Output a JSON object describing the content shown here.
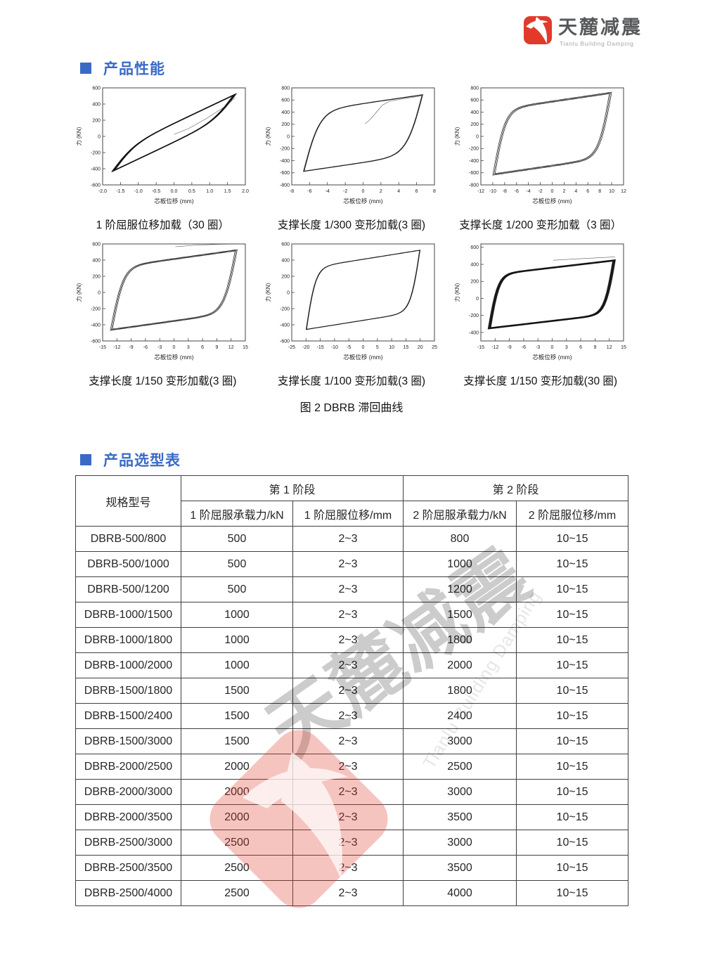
{
  "header": {
    "logo_text": "天麓减震",
    "logo_subtext": "Tianlu Building Damping"
  },
  "sections": {
    "performance_title": "产品性能",
    "selection_title": "产品选型表"
  },
  "figure_caption": "图 2 DBRB 滞回曲线",
  "chart_data": [
    {
      "type": "line",
      "caption": "1 阶屈服位移加载（30 圈）",
      "xlabel": "芯板位移 (mm)",
      "ylabel": "力 (KN)",
      "xlim": [
        -2,
        2
      ],
      "ylim": [
        -600,
        600
      ],
      "xticks": [
        "-2.0",
        "-1.5",
        "-1.0",
        "-0.5",
        "0.0",
        "0.5",
        "1.0",
        "1.5",
        "2.0"
      ],
      "yticks": [
        -600,
        -400,
        -200,
        0,
        200,
        400,
        600
      ],
      "loop": {
        "neg_tip": [
          -1.75,
          -440
        ],
        "pos_tip": [
          1.75,
          530
        ],
        "yield_force": 120,
        "k": 1.6,
        "cycles": 30,
        "spread": 0.06,
        "shape": "lens"
      },
      "initial_path": [
        [
          0,
          25
        ],
        [
          0.4,
          95
        ],
        [
          0.9,
          220
        ],
        [
          1.4,
          360
        ],
        [
          1.72,
          480
        ]
      ]
    },
    {
      "type": "line",
      "caption": "支撑长度 1/300 变形加载(3 圈)",
      "xlabel": "芯板位移 (mm)",
      "ylabel": "力 (KN)",
      "xlim": [
        -8,
        8
      ],
      "ylim": [
        -800,
        800
      ],
      "xticks": [
        "-8",
        "-6",
        "-4",
        "-2",
        "0",
        "2",
        "4",
        "6",
        "8"
      ],
      "yticks": [
        -800,
        -600,
        -400,
        -200,
        0,
        200,
        400,
        600,
        800
      ],
      "loop": {
        "neg_tip": [
          -6.7,
          -580
        ],
        "pos_tip": [
          6.7,
          690
        ],
        "yield_force": 490,
        "k": 0.55,
        "cycles": 3,
        "spread": 0.015,
        "shape": "full"
      },
      "initial_path": [
        [
          0.2,
          205
        ],
        [
          0.8,
          280
        ],
        [
          1.5,
          400
        ],
        [
          2.2,
          520
        ],
        [
          3.0,
          580
        ],
        [
          4.5,
          622
        ],
        [
          6.5,
          665
        ]
      ]
    },
    {
      "type": "line",
      "caption": "支撑长度 1/200 变形加载（3 圈）",
      "xlabel": "芯板位移 (mm)",
      "ylabel": "力 (KN)",
      "xlim": [
        -12,
        12
      ],
      "ylim": [
        -800,
        800
      ],
      "xticks": [
        "-12",
        "-10",
        "-8",
        "-6",
        "-4",
        "-2",
        "0",
        "2",
        "4",
        "6",
        "8",
        "10",
        "12"
      ],
      "yticks": [
        -800,
        -600,
        -400,
        -200,
        0,
        200,
        400,
        600,
        800
      ],
      "loop": {
        "neg_tip": [
          -10,
          -640
        ],
        "pos_tip": [
          10,
          730
        ],
        "yield_force": 540,
        "k": 0.5,
        "cycles": 3,
        "spread": 0.04,
        "shape": "full"
      },
      "initial_path": null
    },
    {
      "type": "line",
      "caption": "支撑长度 1/150 变形加载(3 圈)",
      "xlabel": "芯板位移 (mm)",
      "ylabel": "力 (KN)",
      "xlim": [
        -15,
        15
      ],
      "ylim": [
        -600,
        600
      ],
      "xticks": [
        "-15",
        "-12",
        "-9",
        "-6",
        "-3",
        "0",
        "3",
        "6",
        "9",
        "12",
        "15"
      ],
      "yticks": [
        -600,
        -400,
        -200,
        0,
        200,
        400,
        600
      ],
      "loop": {
        "neg_tip": [
          -13.4,
          -470
        ],
        "pos_tip": [
          13.3,
          530
        ],
        "yield_force": 390,
        "k": 0.38,
        "cycles": 3,
        "spread": 0.035,
        "shape": "full"
      },
      "initial_path": [
        [
          0.3,
          565
        ],
        [
          4,
          583
        ],
        [
          9,
          595
        ],
        [
          13.1,
          600
        ]
      ]
    },
    {
      "type": "line",
      "caption": "支撑长度 1/100 变形加载(3 圈)",
      "xlabel": "芯板位移 (mm)",
      "ylabel": "力 (KN)",
      "xlim": [
        -25,
        25
      ],
      "ylim": [
        -600,
        600
      ],
      "xticks": [
        "-25",
        "-20",
        "-15",
        "-10",
        "-5",
        "0",
        "5",
        "10",
        "15",
        "20",
        "25"
      ],
      "yticks": [
        -600,
        -400,
        -200,
        0,
        200,
        400,
        600
      ],
      "loop": {
        "neg_tip": [
          -20,
          -460
        ],
        "pos_tip": [
          20,
          525
        ],
        "yield_force": 380,
        "k": 0.3,
        "cycles": 3,
        "spread": 0.012,
        "shape": "full"
      },
      "initial_path": null
    },
    {
      "type": "line",
      "caption": "支撑长度 1/150 变形加载(30 圈)",
      "xlabel": "芯板位移 (mm)",
      "ylabel": "力 (KN)",
      "xlim": [
        -15,
        15
      ],
      "ylim": [
        -500,
        640
      ],
      "xticks": [
        "-15",
        "-12",
        "-9",
        "-6",
        "-3",
        "0",
        "3",
        "6",
        "9",
        "12",
        "15"
      ],
      "yticks": [
        -400,
        -200,
        0,
        200,
        400,
        600
      ],
      "loop": {
        "neg_tip": [
          -13.5,
          -360
        ],
        "pos_tip": [
          13.3,
          455
        ],
        "yield_force": 320,
        "k": 0.5,
        "cycles": 30,
        "spread": 0.045,
        "shape": "full"
      },
      "initial_path": [
        [
          0.2,
          448
        ],
        [
          5,
          464
        ],
        [
          10,
          478
        ],
        [
          13.2,
          488
        ]
      ]
    }
  ],
  "table": {
    "col_model": "规格型号",
    "stage1": "第 1 阶段",
    "stage2": "第 2 阶段",
    "subheaders": [
      "1 阶屈服承载力/kN",
      "1 阶屈服位移/mm",
      "2 阶屈服承载力/kN",
      "2 阶屈服位移/mm"
    ],
    "rows": [
      [
        "DBRB-500/800",
        "500",
        "2~3",
        "800",
        "10~15"
      ],
      [
        "DBRB-500/1000",
        "500",
        "2~3",
        "1000",
        "10~15"
      ],
      [
        "DBRB-500/1200",
        "500",
        "2~3",
        "1200",
        "10~15"
      ],
      [
        "DBRB-1000/1500",
        "1000",
        "2~3",
        "1500",
        "10~15"
      ],
      [
        "DBRB-1000/1800",
        "1000",
        "2~3",
        "1800",
        "10~15"
      ],
      [
        "DBRB-1000/2000",
        "1000",
        "2~3",
        "2000",
        "10~15"
      ],
      [
        "DBRB-1500/1800",
        "1500",
        "2~3",
        "1800",
        "10~15"
      ],
      [
        "DBRB-1500/2400",
        "1500",
        "2~3",
        "2400",
        "10~15"
      ],
      [
        "DBRB-1500/3000",
        "1500",
        "2~3",
        "3000",
        "10~15"
      ],
      [
        "DBRB-2000/2500",
        "2000",
        "2~3",
        "2500",
        "10~15"
      ],
      [
        "DBRB-2000/3000",
        "2000",
        "2~3",
        "3000",
        "10~15"
      ],
      [
        "DBRB-2000/3500",
        "2000",
        "2~3",
        "3500",
        "10~15"
      ],
      [
        "DBRB-2500/3000",
        "2500",
        "2~3",
        "3000",
        "10~15"
      ],
      [
        "DBRB-2500/3500",
        "2500",
        "2~3",
        "3500",
        "10~15"
      ],
      [
        "DBRB-2500/4000",
        "2500",
        "2~3",
        "4000",
        "10~15"
      ]
    ]
  },
  "watermark": {
    "cn": "天麓减震",
    "en": "Tianlu Building Damping"
  },
  "colors": {
    "accent_blue": "#3a6ac6",
    "brand_red": "#e23a2a",
    "table_border": "#3f3f3f"
  }
}
